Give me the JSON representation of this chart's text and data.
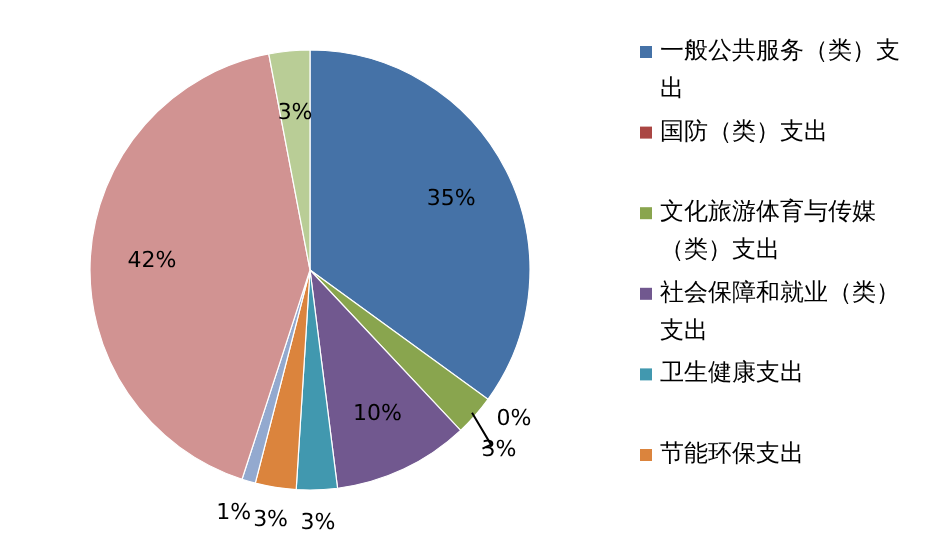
{
  "chart_data": {
    "type": "pie",
    "categories": [
      "一般公共服务（类）支出",
      "国防（类）支出",
      "文化旅游体育与传媒（类）支出",
      "社会保障和就业（类）支出",
      "卫生健康支出",
      "节能环保支出",
      null,
      null,
      null
    ],
    "values": [
      35,
      0,
      3,
      10,
      3,
      3,
      1,
      42,
      3
    ],
    "value_labels": [
      "35%",
      "0%",
      "3%",
      "10%",
      "3%",
      "3%",
      "1%",
      "42%",
      "3%"
    ],
    "colors": [
      "#4572a7",
      "#aa4643",
      "#89a54e",
      "#71588f",
      "#4198af",
      "#db843d",
      "#93a9cf",
      "#d19392",
      "#b9cd96"
    ],
    "legend": "right"
  }
}
